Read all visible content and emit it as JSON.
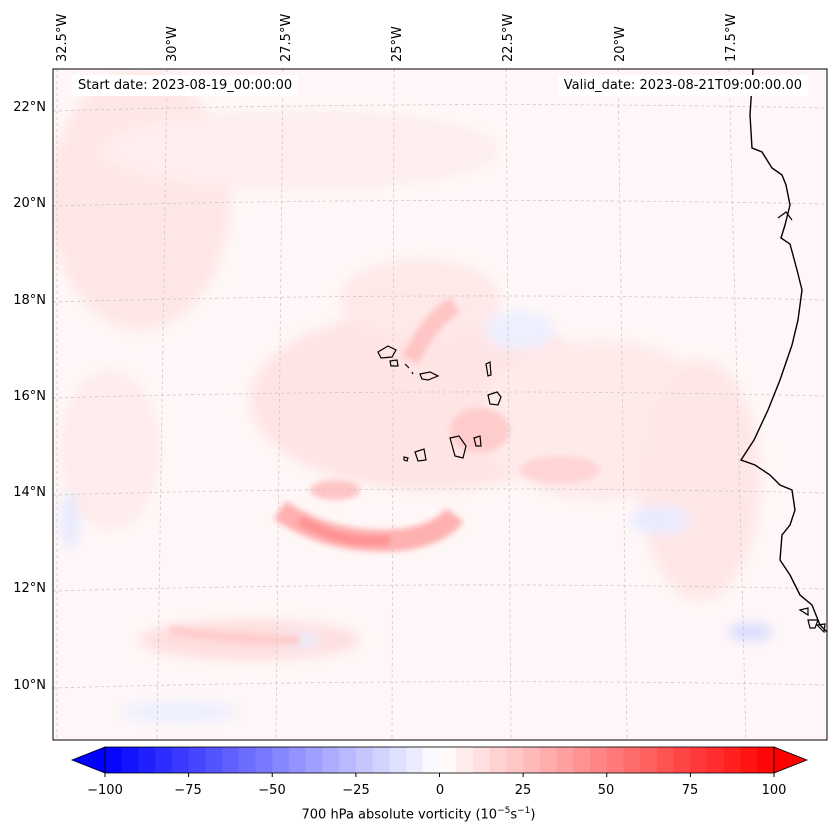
{
  "header": {
    "start_date": "Start date: 2023-08-19_00:00:00",
    "valid_date": "Valid_date: 2023-08-21T09:00:00.00"
  },
  "lon_labels": [
    "32.5°W",
    "30°W",
    "27.5°W",
    "25°W",
    "22.5°W",
    "20°W",
    "17.5°W"
  ],
  "lat_labels": [
    "22°N",
    "20°N",
    "18°N",
    "16°N",
    "14°N",
    "12°N",
    "10°N"
  ],
  "colorbar": {
    "title": "700 hPa absolute vorticity (10",
    "exp": "−5",
    "unit_s": "s",
    "exp2": "−1",
    "unit_close": ")",
    "ticks": [
      "−100",
      "−75",
      "−50",
      "−25",
      "0",
      "25",
      "50",
      "75",
      "100"
    ],
    "min": -100,
    "max": 100,
    "step": 5,
    "negative_color": "#0000ff",
    "positive_color": "#ff0000"
  },
  "colors": {
    "coast": "#000000",
    "grid": "#bbbbbb",
    "field_base": "#fff6f6"
  }
}
